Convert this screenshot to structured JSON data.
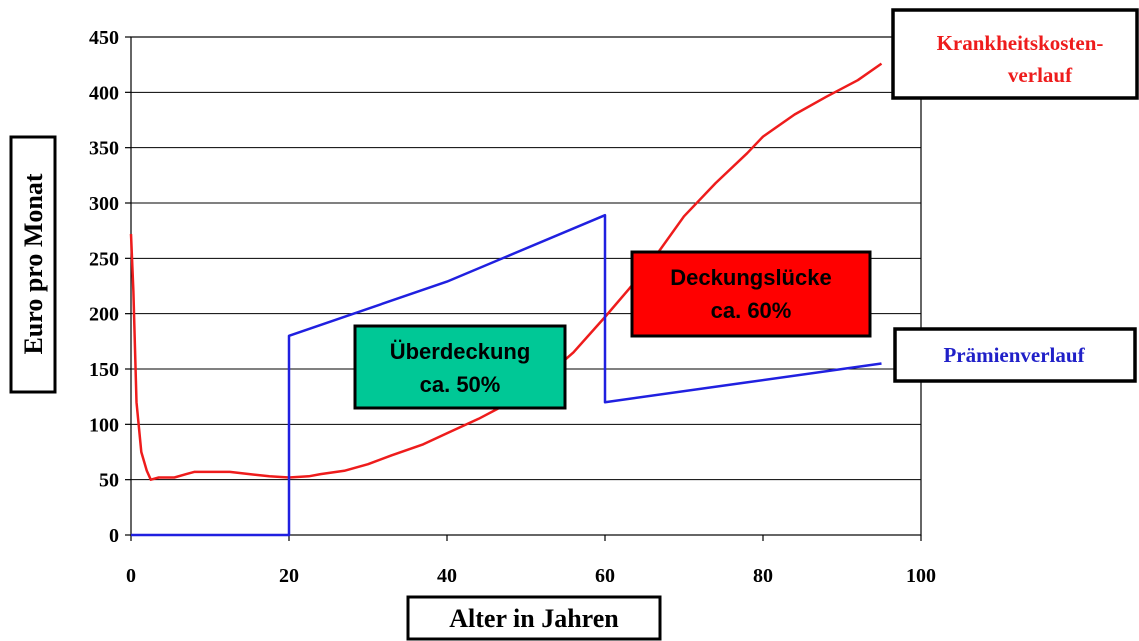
{
  "chart_data": {
    "type": "line",
    "xlabel": "Alter in Jahren",
    "ylabel": "Euro pro Monat",
    "xlim": [
      0,
      100
    ],
    "ylim": [
      0,
      450
    ],
    "x_ticks": [
      0,
      20,
      40,
      60,
      80,
      100
    ],
    "y_ticks": [
      0,
      50,
      100,
      150,
      200,
      250,
      300,
      350,
      400,
      450
    ],
    "grid": "horizontal",
    "series": [
      {
        "name": "Krankheitskostenverlauf",
        "color": "#ee1c1c",
        "points": [
          [
            0,
            272
          ],
          [
            0.3,
            220
          ],
          [
            0.7,
            120
          ],
          [
            1.3,
            75
          ],
          [
            2,
            58
          ],
          [
            2.5,
            50
          ],
          [
            3.5,
            52
          ],
          [
            5.5,
            52
          ],
          [
            7,
            55
          ],
          [
            8,
            57
          ],
          [
            10,
            57
          ],
          [
            12.5,
            57
          ],
          [
            15,
            55
          ],
          [
            17.5,
            53
          ],
          [
            20,
            52
          ],
          [
            22.5,
            53
          ],
          [
            24,
            55
          ],
          [
            27,
            58
          ],
          [
            30,
            64
          ],
          [
            33,
            72
          ],
          [
            37,
            82
          ],
          [
            40,
            92
          ],
          [
            44,
            105
          ],
          [
            48,
            120
          ],
          [
            52,
            140
          ],
          [
            56,
            165
          ],
          [
            60,
            197
          ],
          [
            63,
            222
          ],
          [
            66,
            248
          ],
          [
            70,
            288
          ],
          [
            74,
            318
          ],
          [
            78,
            345
          ],
          [
            80,
            360
          ],
          [
            84,
            380
          ],
          [
            88,
            396
          ],
          [
            92,
            411
          ],
          [
            95,
            426
          ]
        ]
      },
      {
        "name": "Prämienverlauf",
        "color": "#2020e0",
        "points": [
          [
            0,
            0
          ],
          [
            20,
            0
          ],
          [
            20,
            180
          ],
          [
            40,
            229
          ],
          [
            60,
            289
          ],
          [
            60,
            120
          ],
          [
            95,
            155
          ]
        ]
      }
    ],
    "labels": {
      "red_series_line1": "Krankheitskosten-",
      "red_series_line2": "verlauf",
      "blue_series": "Prämienverlauf"
    },
    "annotations": [
      {
        "line1": "Überdeckung",
        "line2": "ca. 50%",
        "color": "#00c896"
      },
      {
        "line1": "Deckungslücke",
        "line2": "ca. 60%",
        "color": "#ff0000"
      }
    ]
  }
}
